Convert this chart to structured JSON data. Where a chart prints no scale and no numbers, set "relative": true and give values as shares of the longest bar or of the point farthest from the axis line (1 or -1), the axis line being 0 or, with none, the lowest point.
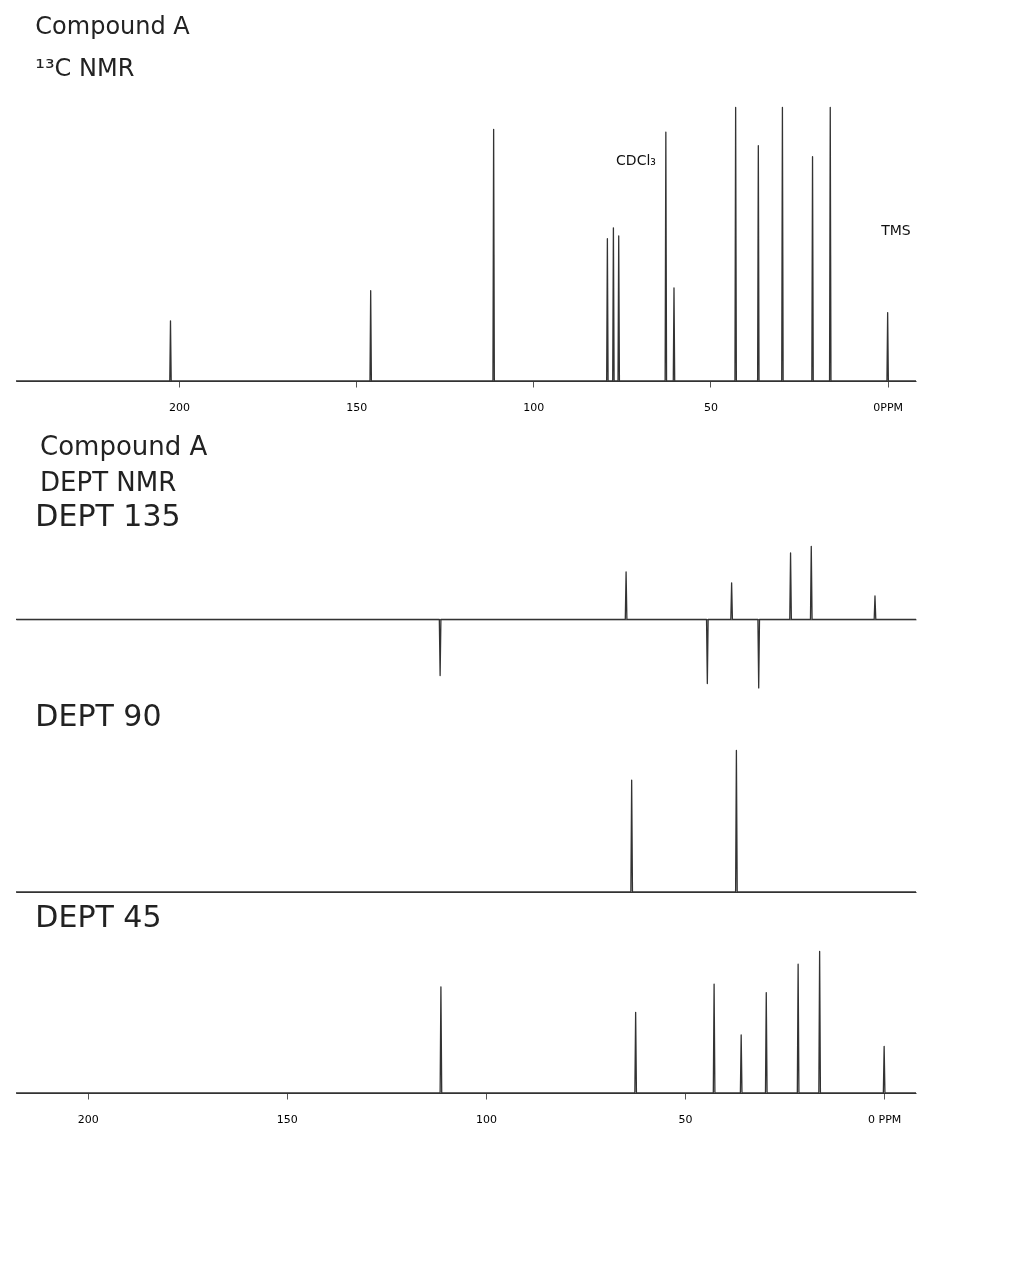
{
  "chart_data": [
    {
      "type": "line",
      "title": "Compound A",
      "subtitle": "¹³C NMR",
      "relative": true,
      "tick_labels": "x",
      "xlim": [
        246,
        -8
      ],
      "xticks": [
        200,
        150,
        100,
        50,
        {
          "value": 0,
          "label": "0PPM"
        }
      ],
      "annotations": [
        "CDCl₃",
        "TMS"
      ],
      "series": [
        {
          "color": "#333333",
          "x": [
            246,
            202.6,
            202.4,
            202.2,
            146.1,
            145.9,
            145.7,
            111.4,
            111.2,
            111.0,
            79.3,
            79.1,
            78.9,
            77.6,
            77.4,
            77.2,
            76.1,
            75.9,
            75.7,
            62.8,
            62.6,
            62.4,
            60.5,
            60.3,
            60.1,
            43.1,
            42.9,
            42.7,
            36.7,
            36.5,
            36.3,
            29.9,
            29.7,
            29.5,
            21.4,
            21.2,
            21.0,
            16.4,
            16.2,
            16.0,
            0.2,
            0,
            -0.2,
            -8
          ],
          "values": [
            0,
            0,
            0.22,
            0,
            0,
            0.33,
            0,
            0,
            0.92,
            0,
            0,
            0.52,
            0,
            0,
            0.56,
            0,
            0,
            0.53,
            0,
            0,
            0.91,
            0,
            0,
            0.34,
            0,
            0,
            1,
            0,
            0,
            0.86,
            0,
            0,
            1,
            0,
            0,
            0.82,
            0,
            0,
            1,
            0,
            0,
            0.25,
            0,
            0
          ]
        }
      ]
    },
    {
      "type": "other",
      "title": "Compound A",
      "subtitle": "DEPT NMR"
    },
    {
      "type": "line",
      "title": "DEPT 135",
      "relative": true,
      "tick_labels": false,
      "xlim": [
        218,
        -8
      ],
      "series": [
        {
          "color": "#333333",
          "x": [
            218,
            111.7,
            111.5,
            111.3,
            65.0,
            64.8,
            64.6,
            44.6,
            44.4,
            44.2,
            38.5,
            38.3,
            38.1,
            31.7,
            31.5,
            31.3,
            23.7,
            23.5,
            23.3,
            18.5,
            18.3,
            18.1,
            2.5,
            2.3,
            2.1,
            -8
          ],
          "values": [
            0,
            0,
            -0.77,
            0,
            0,
            0.65,
            0,
            0,
            -0.88,
            0,
            0,
            0.5,
            0,
            0,
            -0.94,
            0,
            0,
            0.91,
            0,
            0,
            1,
            0,
            0,
            0.32,
            0,
            0
          ]
        }
      ]
    },
    {
      "type": "line",
      "title": "DEPT 90",
      "relative": true,
      "tick_labels": false,
      "xlim": [
        218,
        -8
      ],
      "series": [
        {
          "color": "#333333",
          "x": [
            218,
            63.6,
            63.4,
            63.2,
            37.3,
            37.1,
            36.9,
            -8
          ],
          "values": [
            0,
            0,
            0.79,
            0,
            0,
            1,
            0,
            0
          ]
        }
      ]
    },
    {
      "type": "line",
      "title": "DEPT 45",
      "relative": true,
      "xlim": [
        218,
        -8
      ],
      "xticks": [
        200,
        150,
        100,
        50,
        {
          "value": 0,
          "label": "0 PPM"
        }
      ],
      "series": [
        {
          "color": "#333333",
          "x": [
            218,
            111.5,
            111.3,
            111.1,
            62.6,
            62.4,
            62.2,
            42.9,
            42.7,
            42.5,
            36.1,
            35.9,
            35.7,
            29.8,
            29.6,
            29.4,
            21.8,
            21.6,
            21.4,
            16.4,
            16.2,
            16.0,
            0.2,
            0,
            -0.2,
            -8
          ],
          "values": [
            0,
            0,
            0.75,
            0,
            0,
            0.57,
            0,
            0,
            0.77,
            0,
            0,
            0.41,
            0,
            0,
            0.71,
            0,
            0,
            0.91,
            0,
            0,
            1,
            0,
            0,
            0.33,
            0,
            0
          ]
        }
      ]
    }
  ]
}
